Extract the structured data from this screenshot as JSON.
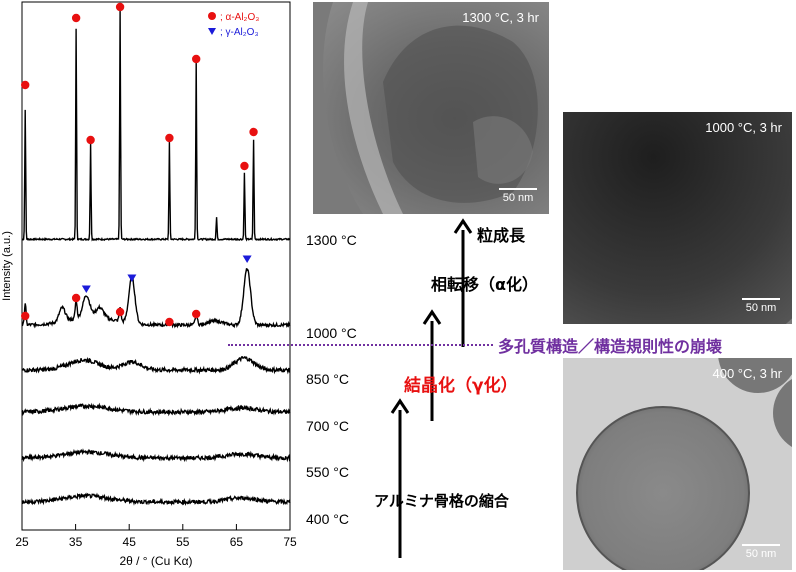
{
  "xrd_chart": {
    "ylabel": "Intensity (a.u.)",
    "xlabel": "2θ / ° (Cu Kα)",
    "xticks": [
      "25",
      "35",
      "45",
      "55",
      "65",
      "75"
    ],
    "legend": {
      "alpha": "; α-Al₂O₃",
      "gamma": "; γ-Al₂O₃",
      "alpha_color": "#e81010",
      "gamma_color": "#1b1bd9"
    },
    "temperatures": [
      "1300 °C",
      "1000 °C",
      "850 °C",
      "700 °C",
      "550 °C",
      "400 °C"
    ]
  },
  "chart_data": {
    "type": "line",
    "xlabel": "2θ / ° (Cu Kα)",
    "ylabel": "Intensity (a.u.)",
    "xlim": [
      25,
      75
    ],
    "series": [
      {
        "name": "1300 °C",
        "alpha_peaks": [
          25.6,
          35.1,
          37.8,
          43.3,
          52.5,
          57.5,
          66.5,
          68.2
        ],
        "gamma_peaks": []
      },
      {
        "name": "1000 °C",
        "alpha_peaks": [
          25.6,
          35.1,
          43.3,
          52.5,
          57.5
        ],
        "gamma_peaks": [
          37.0,
          45.5,
          67.0
        ]
      },
      {
        "name": "850 °C",
        "alpha_peaks": [],
        "gamma_peaks": []
      },
      {
        "name": "700 °C",
        "alpha_peaks": [],
        "gamma_peaks": []
      },
      {
        "name": "550 °C",
        "alpha_peaks": [],
        "gamma_peaks": []
      },
      {
        "name": "400 °C",
        "alpha_peaks": [],
        "gamma_peaks": []
      }
    ]
  },
  "stages": {
    "shrinkage": "アルミナ骨格の縮合",
    "crystallization": "結晶化（γ化）",
    "phase_transition": "相転移（α化）",
    "grain_growth": "粒成長",
    "collapse": "多孔質構造／構造規則性の崩壊"
  },
  "tem_images": [
    {
      "label": "1300 °C, 3 hr",
      "scale": "50 nm"
    },
    {
      "label": "1000 °C, 3 hr",
      "scale": "50 nm"
    },
    {
      "label": "400 °C, 3 hr",
      "scale": "50 nm"
    }
  ],
  "colors": {
    "alpha": "#e81010",
    "gamma": "#1b1bd9",
    "purple": "#7030a0",
    "red_text": "#e81010"
  }
}
